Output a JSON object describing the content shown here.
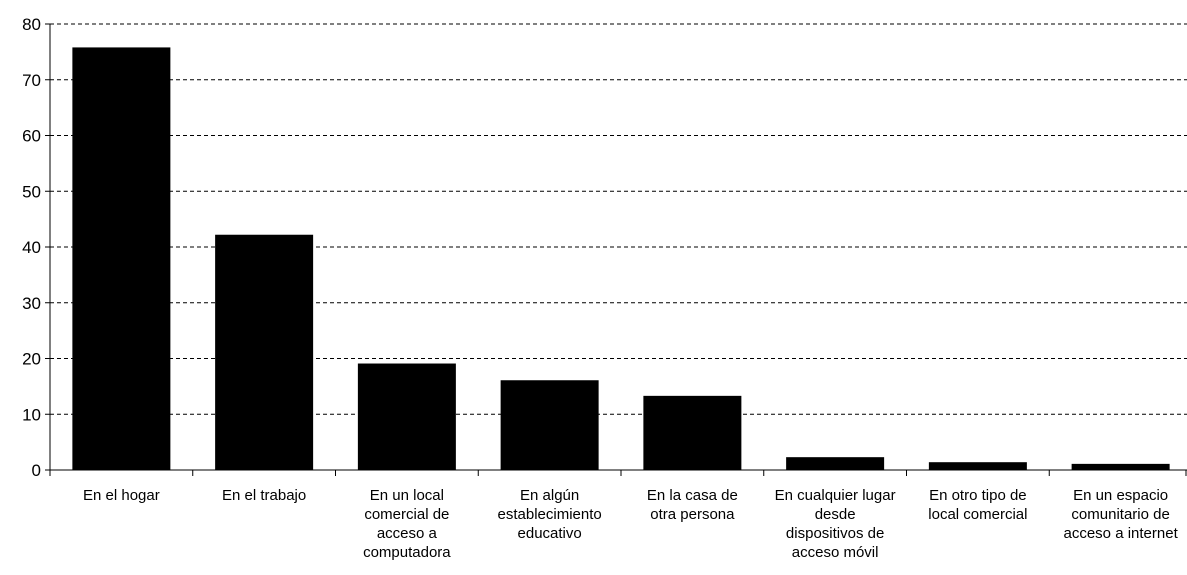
{
  "chart_data": {
    "type": "bar",
    "title": "",
    "xlabel": "",
    "ylabel": "",
    "ylim": [
      0,
      80
    ],
    "yticks": [
      0,
      10,
      20,
      30,
      40,
      50,
      60,
      70,
      80
    ],
    "grid": "horizontal-dashed",
    "categories": [
      "En el hogar",
      "En el trabajo",
      "En un local\ncomercial de\nacceso a\ncomputadora",
      "En algún\nestablecimiento\neducativo",
      "En la casa de\notra persona",
      "En cualquier lugar\ndesde\ndispositivos de\nacceso móvil",
      "En otro tipo de\nlocal comercial",
      "En un espacio\ncomunitario de\nacceso a internet"
    ],
    "values": [
      75.8,
      42.2,
      19.1,
      16.1,
      13.3,
      2.3,
      1.4,
      1.1
    ],
    "bar_color": "#000000"
  }
}
